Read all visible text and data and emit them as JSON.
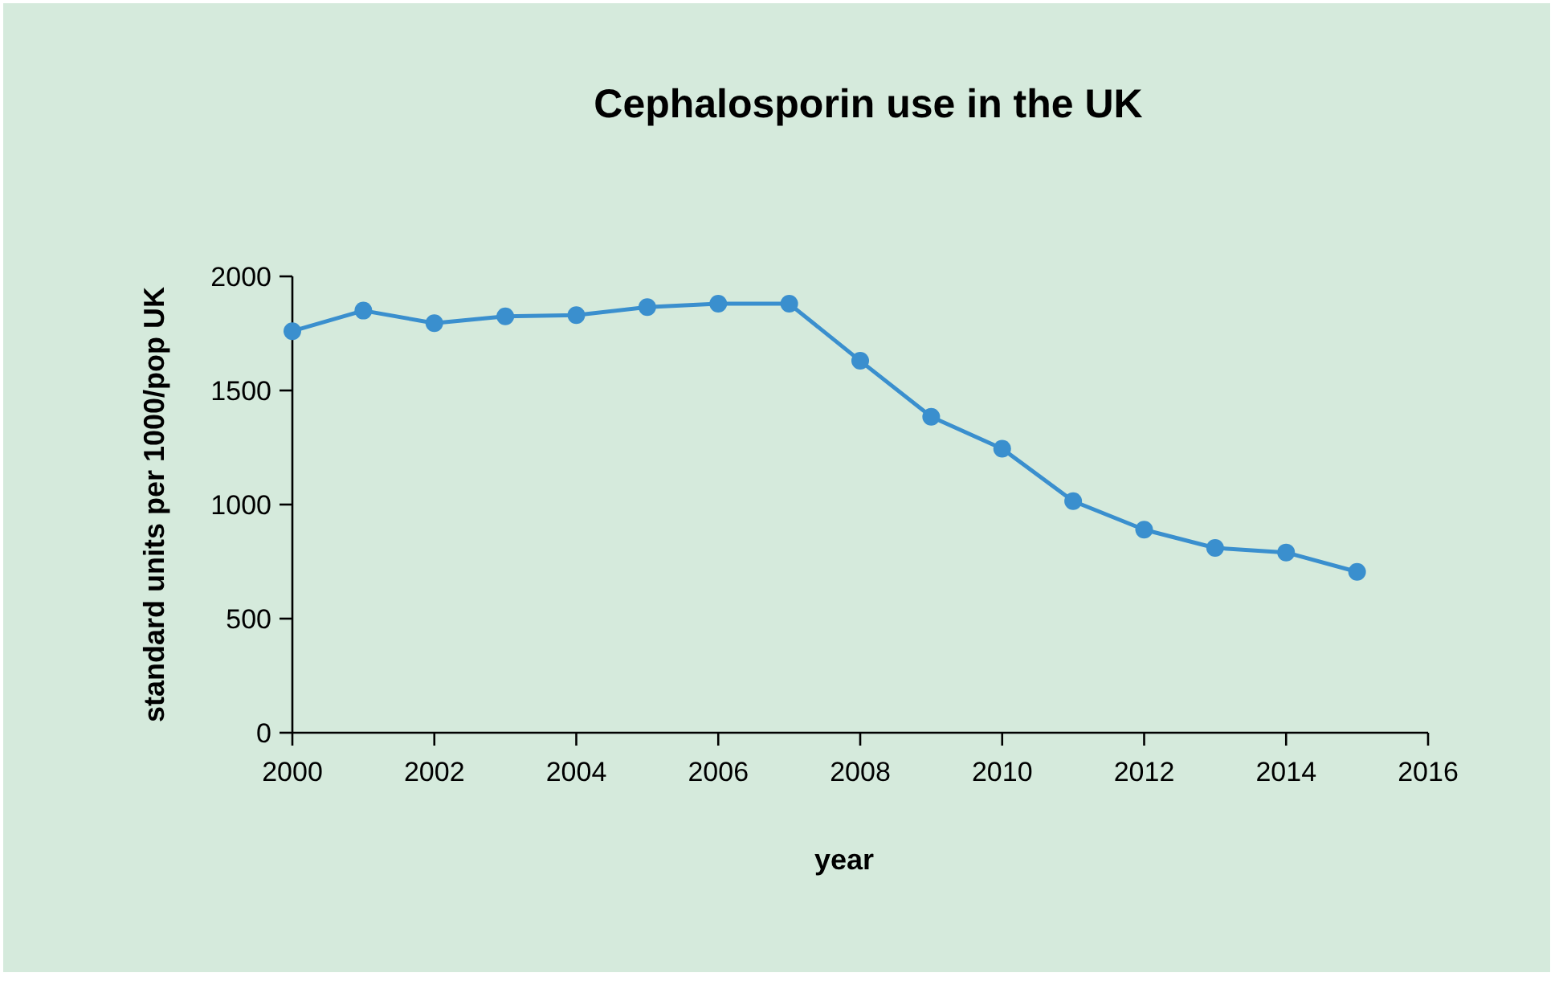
{
  "chart_data": {
    "type": "line",
    "title": "Cephalosporin use in the UK",
    "xlabel": "year",
    "ylabel": "standard units per 1000/pop UK",
    "x": [
      2000,
      2001,
      2002,
      2003,
      2004,
      2005,
      2006,
      2007,
      2008,
      2009,
      2010,
      2011,
      2012,
      2013,
      2014,
      2015
    ],
    "series": [
      {
        "color": "#3a8fce",
        "values": [
          1760,
          1850,
          1795,
          1825,
          1830,
          1865,
          1880,
          1880,
          1630,
          1385,
          1245,
          1015,
          890,
          810,
          790,
          705
        ]
      }
    ],
    "xlim": [
      2000,
      2016
    ],
    "xticks": [
      2000,
      2002,
      2004,
      2006,
      2008,
      2010,
      2012,
      2014,
      2016
    ],
    "ylim": [
      0,
      2000
    ],
    "yticks": [
      0,
      500,
      1000,
      1500,
      2000
    ],
    "grid": false,
    "marker": "circle",
    "line_style": "solid"
  }
}
